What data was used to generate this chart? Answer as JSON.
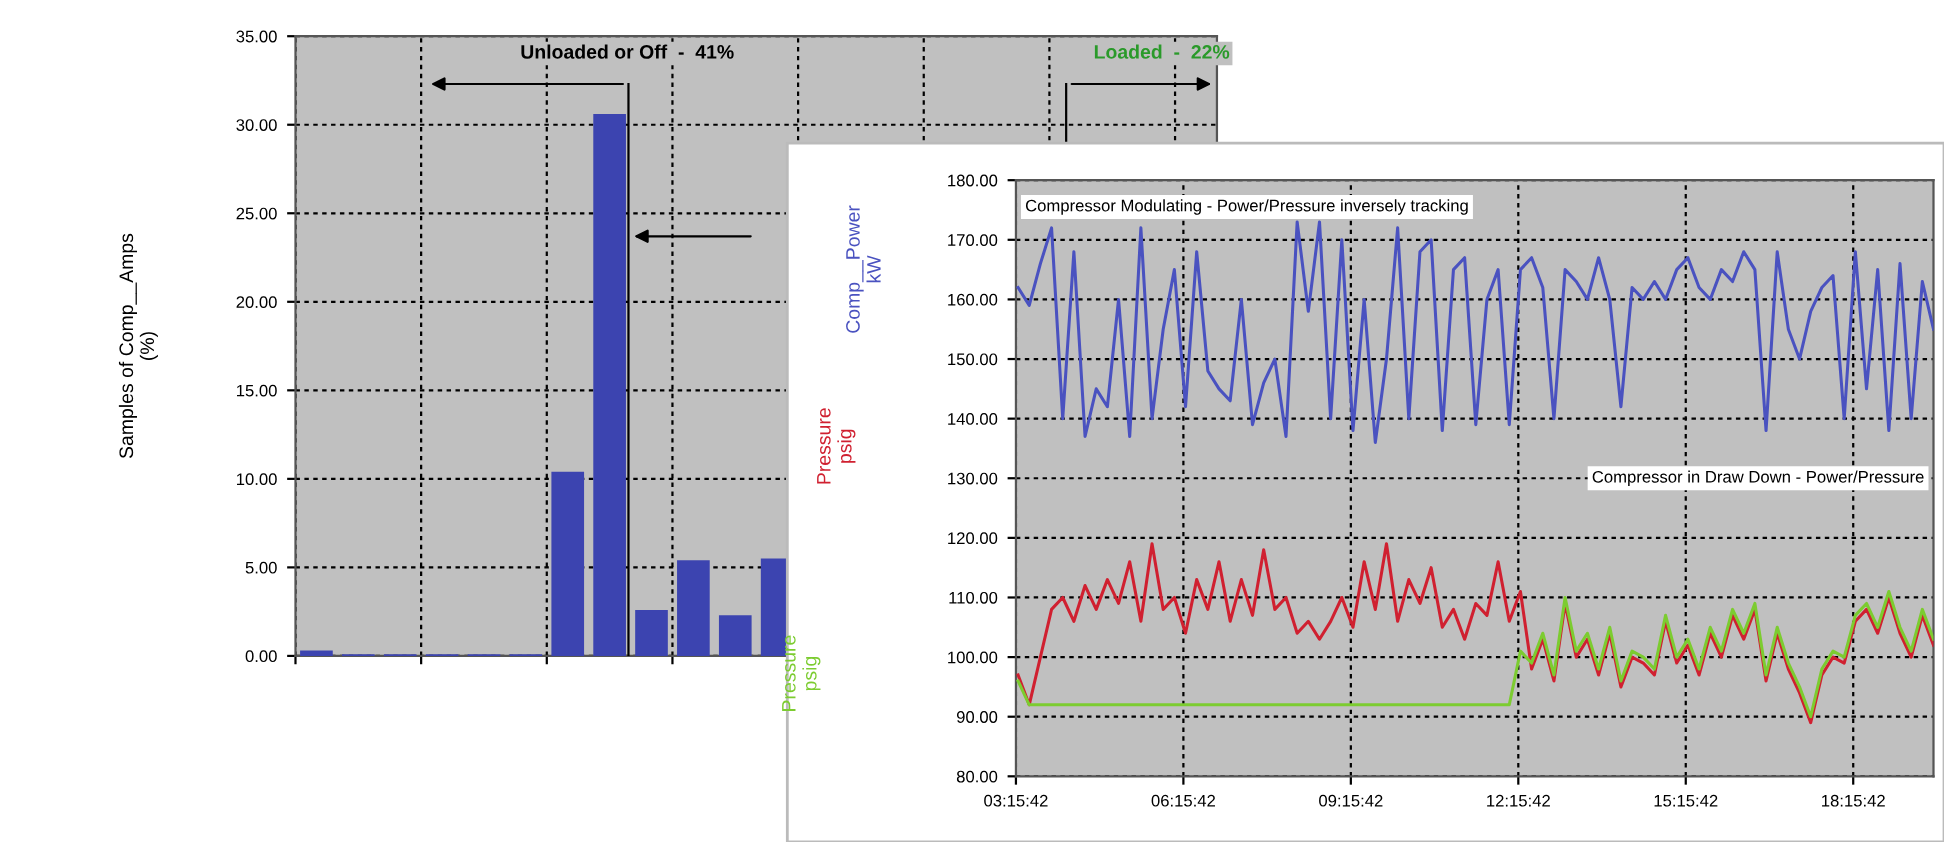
{
  "chart_data": [
    {
      "type": "bar",
      "ylabel": "Samples of Comp__Amps\n(%)",
      "categories": [
        null,
        null,
        null,
        null,
        null,
        null,
        null,
        null,
        null,
        null,
        null,
        null,
        null,
        null,
        null,
        null,
        null,
        null,
        null,
        null,
        null,
        null
      ],
      "values": [
        0.3,
        0.1,
        0.1,
        0.1,
        0.1,
        0.1,
        10.4,
        30.6,
        2.6,
        5.4,
        2.3,
        5.5,
        null,
        null,
        null,
        null,
        null,
        null,
        null,
        null,
        null,
        null
      ],
      "color": "#3c44b0",
      "ylim": [
        0,
        35
      ],
      "yticks": [
        {
          "value": 0,
          "label": "0.00"
        },
        {
          "value": 5,
          "label": "5.00"
        },
        {
          "value": 10,
          "label": "10.00"
        },
        {
          "value": 15,
          "label": "15.00"
        },
        {
          "value": 20,
          "label": "20.00"
        },
        {
          "value": 25,
          "label": "25.00"
        },
        {
          "value": 30,
          "label": "30.00"
        },
        {
          "value": 35,
          "label": "35.00"
        }
      ],
      "annotations": [
        "Unloaded or Off  -  41%",
        "Loaded  -  22%"
      ],
      "grid": true
    },
    {
      "type": "line",
      "x": [
        3.3,
        3.5,
        3.7,
        3.9,
        4.1,
        4.3,
        4.5,
        4.7,
        4.9,
        5.1,
        5.3,
        5.5,
        5.7,
        5.9,
        6.1,
        6.3,
        6.5,
        6.7,
        6.9,
        7.1,
        7.3,
        7.5,
        7.7,
        7.9,
        8.1,
        8.3,
        8.5,
        8.7,
        8.9,
        9.1,
        9.3,
        9.5,
        9.7,
        9.9,
        10.1,
        10.3,
        10.5,
        10.7,
        10.9,
        11.1,
        11.3,
        11.5,
        11.7,
        11.9,
        12.1,
        12.3,
        12.5,
        12.7,
        12.9,
        13.1,
        13.3,
        13.5,
        13.7,
        13.9,
        14.1,
        14.3,
        14.5,
        14.7,
        14.9,
        15.1,
        15.3,
        15.5,
        15.7,
        15.9,
        16.1,
        16.3,
        16.5,
        16.7,
        16.9,
        17.1,
        17.3,
        17.5,
        17.7,
        17.9,
        18.1,
        18.3,
        18.5,
        18.7,
        18.9,
        19.1,
        19.3,
        19.5,
        19.7
      ],
      "series": [
        {
          "name": "Comp__Power\nkW",
          "color": "#4a52c0",
          "values": [
            162,
            159,
            166,
            172,
            140,
            168,
            137,
            145,
            142,
            160,
            137,
            172,
            140,
            155,
            165,
            142,
            168,
            148,
            145,
            143,
            160,
            139,
            146,
            150,
            137,
            173,
            158,
            173,
            140,
            170,
            138,
            160,
            136,
            150,
            172,
            140,
            168,
            170,
            138,
            165,
            167,
            139,
            160,
            165,
            139,
            165,
            167,
            162,
            140,
            165,
            163,
            160,
            167,
            160,
            142,
            162,
            160,
            163,
            160,
            165,
            167,
            162,
            160,
            165,
            163,
            168,
            165,
            138,
            168,
            155,
            150,
            158,
            162,
            164,
            140,
            168,
            145,
            165,
            138,
            166,
            140,
            163,
            155
          ]
        },
        {
          "name": "Pressure\npsig",
          "color": "#d02030",
          "values": [
            97,
            92,
            100,
            108,
            110,
            106,
            112,
            108,
            113,
            109,
            116,
            106,
            119,
            108,
            110,
            104,
            113,
            108,
            116,
            106,
            113,
            107,
            118,
            108,
            110,
            104,
            106,
            103,
            106,
            110,
            105,
            116,
            108,
            119,
            106,
            113,
            109,
            115,
            105,
            108,
            103,
            109,
            107,
            116,
            106,
            111,
            98,
            103,
            96,
            109,
            100,
            103,
            97,
            104,
            95,
            100,
            99,
            97,
            106,
            99,
            102,
            97,
            104,
            100,
            107,
            103,
            108,
            96,
            104,
            98,
            94,
            89,
            97,
            100,
            99,
            106,
            108,
            104,
            110,
            104,
            100,
            107,
            102
          ]
        },
        {
          "name": "Pressure\npsig",
          "color": "#7ccc30",
          "values": [
            96,
            92,
            92,
            92,
            92,
            92,
            92,
            92,
            92,
            92,
            92,
            92,
            92,
            92,
            92,
            92,
            92,
            92,
            92,
            92,
            92,
            92,
            92,
            92,
            92,
            92,
            92,
            92,
            92,
            92,
            92,
            92,
            92,
            92,
            92,
            92,
            92,
            92,
            92,
            92,
            92,
            92,
            92,
            92,
            92,
            101,
            99,
            104,
            97,
            110,
            101,
            104,
            98,
            105,
            96,
            101,
            100,
            98,
            107,
            100,
            103,
            98,
            105,
            101,
            108,
            104,
            109,
            97,
            105,
            99,
            95,
            90,
            98,
            101,
            100,
            107,
            109,
            105,
            111,
            105,
            101,
            108,
            103
          ]
        }
      ],
      "xlim": [
        3.2617,
        19.7
      ],
      "xticks": [
        {
          "value": 3.2617,
          "label": "03:15:42"
        },
        {
          "value": 6.2617,
          "label": "06:15:42"
        },
        {
          "value": 9.2617,
          "label": "09:15:42"
        },
        {
          "value": 12.2617,
          "label": "12:15:42"
        },
        {
          "value": 15.2617,
          "label": "15:15:42"
        },
        {
          "value": 18.2617,
          "label": "18:15:42"
        }
      ],
      "ylim": [
        80,
        180
      ],
      "yticks": [
        {
          "value": 80,
          "label": "80.00"
        },
        {
          "value": 90,
          "label": "90.00"
        },
        {
          "value": 100,
          "label": "100.00"
        },
        {
          "value": 110,
          "label": "110.00"
        },
        {
          "value": 120,
          "label": "120.00"
        },
        {
          "value": 130,
          "label": "130.00"
        },
        {
          "value": 140,
          "label": "140.00"
        },
        {
          "value": 150,
          "label": "150.00"
        },
        {
          "value": 160,
          "label": "160.00"
        },
        {
          "value": 170,
          "label": "170.00"
        },
        {
          "value": 180,
          "label": "180.00"
        }
      ],
      "annotations": [
        "Compressor Modulating - Power/Pressure inversely tracking",
        "Compressor in Draw Down - Power/Pressure"
      ],
      "grid": true,
      "marker": "none",
      "line_style": "solid"
    }
  ]
}
